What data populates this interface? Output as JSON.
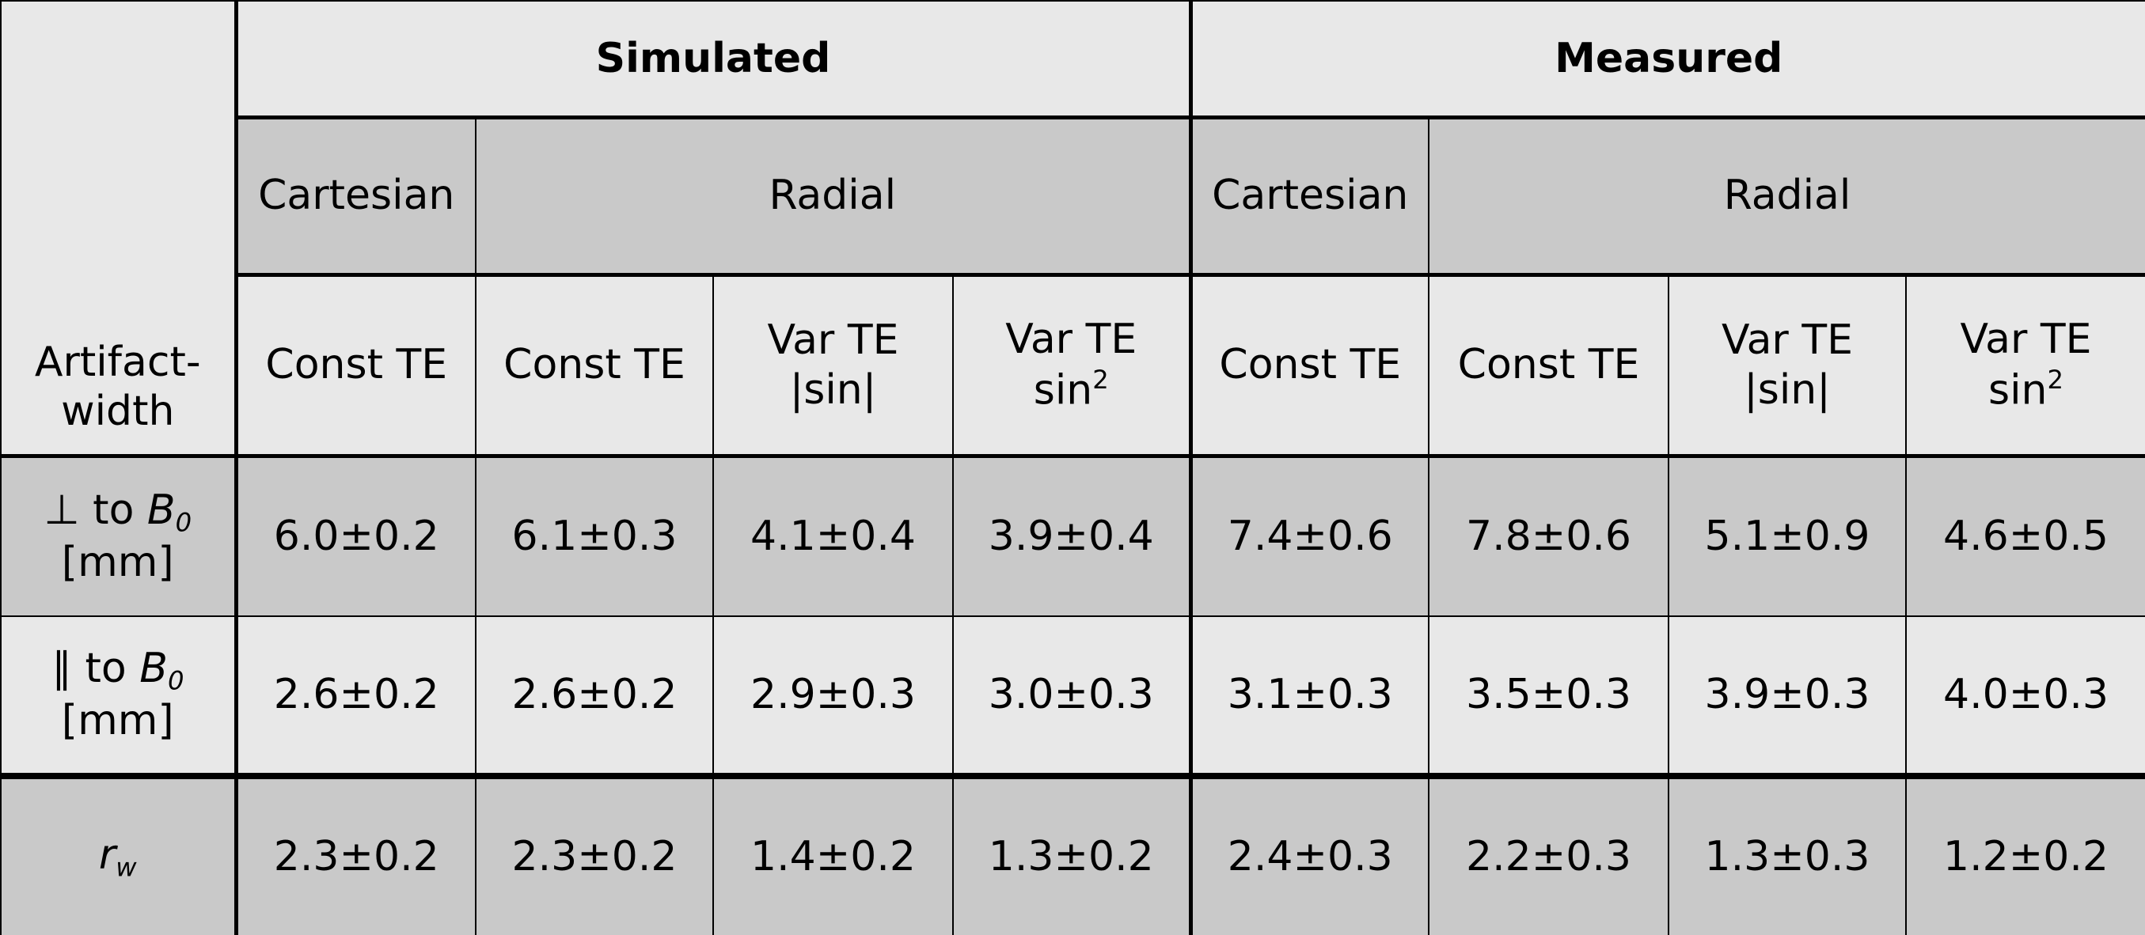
{
  "table": {
    "corner": "Artifact-width",
    "groups": [
      "Simulated",
      "Measured"
    ],
    "methods": [
      "Cartesian",
      "Radial",
      "Cartesian",
      "Radial"
    ],
    "variants": [
      {
        "text": "Const TE"
      },
      {
        "text": "Const TE"
      },
      {
        "text": "Var TE",
        "line2": "|sin|"
      },
      {
        "text": "Var TE",
        "line2": "sin",
        "sup": "2"
      },
      {
        "text": "Const TE"
      },
      {
        "text": "Const TE"
      },
      {
        "text": "Var TE",
        "line2": "|sin|"
      },
      {
        "text": "Var TE",
        "line2": "sin",
        "sup": "2"
      }
    ],
    "rows": [
      {
        "label": {
          "text": "⊥ to ",
          "symbol": "B",
          "sub": "0",
          "unit": "[mm]"
        },
        "values": [
          "6.0±0.2",
          "6.1±0.3",
          "4.1±0.4",
          "3.9±0.4",
          "7.4±0.6",
          "7.8±0.6",
          "5.1±0.9",
          "4.6±0.5"
        ]
      },
      {
        "label": {
          "text": "∥ to ",
          "symbol": "B",
          "sub": "0",
          "unit": "[mm]"
        },
        "values": [
          "2.6±0.2",
          "2.6±0.2",
          "2.9±0.3",
          "3.0±0.3",
          "3.1±0.3",
          "3.5±0.3",
          "3.9±0.3",
          "4.0±0.3"
        ]
      },
      {
        "label": {
          "symbol": "r",
          "sub": "w"
        },
        "values": [
          "2.3±0.2",
          "2.3±0.2",
          "1.4±0.2",
          "1.3±0.2",
          "2.4±0.3",
          "2.2±0.3",
          "1.3±0.3",
          "1.2±0.2"
        ]
      }
    ]
  }
}
